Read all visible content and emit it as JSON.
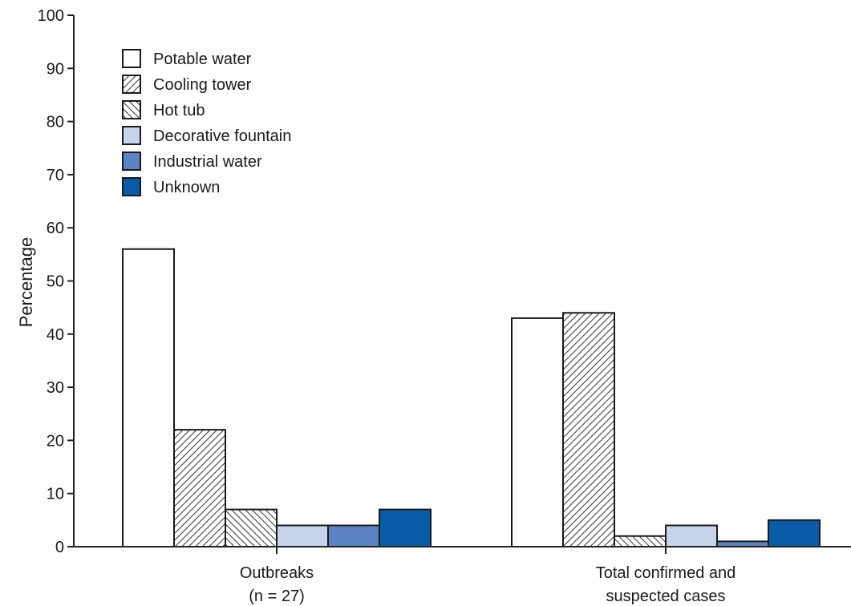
{
  "chart_data": {
    "type": "bar",
    "ylabel": "Percentage",
    "ylim": [
      0,
      100
    ],
    "yticks": [
      0,
      10,
      20,
      30,
      40,
      50,
      60,
      70,
      80,
      90,
      100
    ],
    "grid": false,
    "legend_position": "top-left",
    "categories": [
      {
        "line1": "Outbreaks",
        "line2": "(n = 27)"
      },
      {
        "line1": "Total confirmed and",
        "line2": "suspected cases"
      }
    ],
    "series": [
      {
        "name": "Potable water",
        "values": [
          56,
          43
        ],
        "fill": "white"
      },
      {
        "name": "Cooling tower",
        "values": [
          22,
          44
        ],
        "fill": "hatch-forward"
      },
      {
        "name": "Hot tub",
        "values": [
          7,
          2
        ],
        "fill": "hatch-back"
      },
      {
        "name": "Decorative fountain",
        "values": [
          4,
          4
        ],
        "fill": "#c6d3ec"
      },
      {
        "name": "Industrial water",
        "values": [
          4,
          1
        ],
        "fill": "#5b82c2"
      },
      {
        "name": "Unknown",
        "values": [
          7,
          5
        ],
        "fill": "#0b5ca8"
      }
    ]
  }
}
